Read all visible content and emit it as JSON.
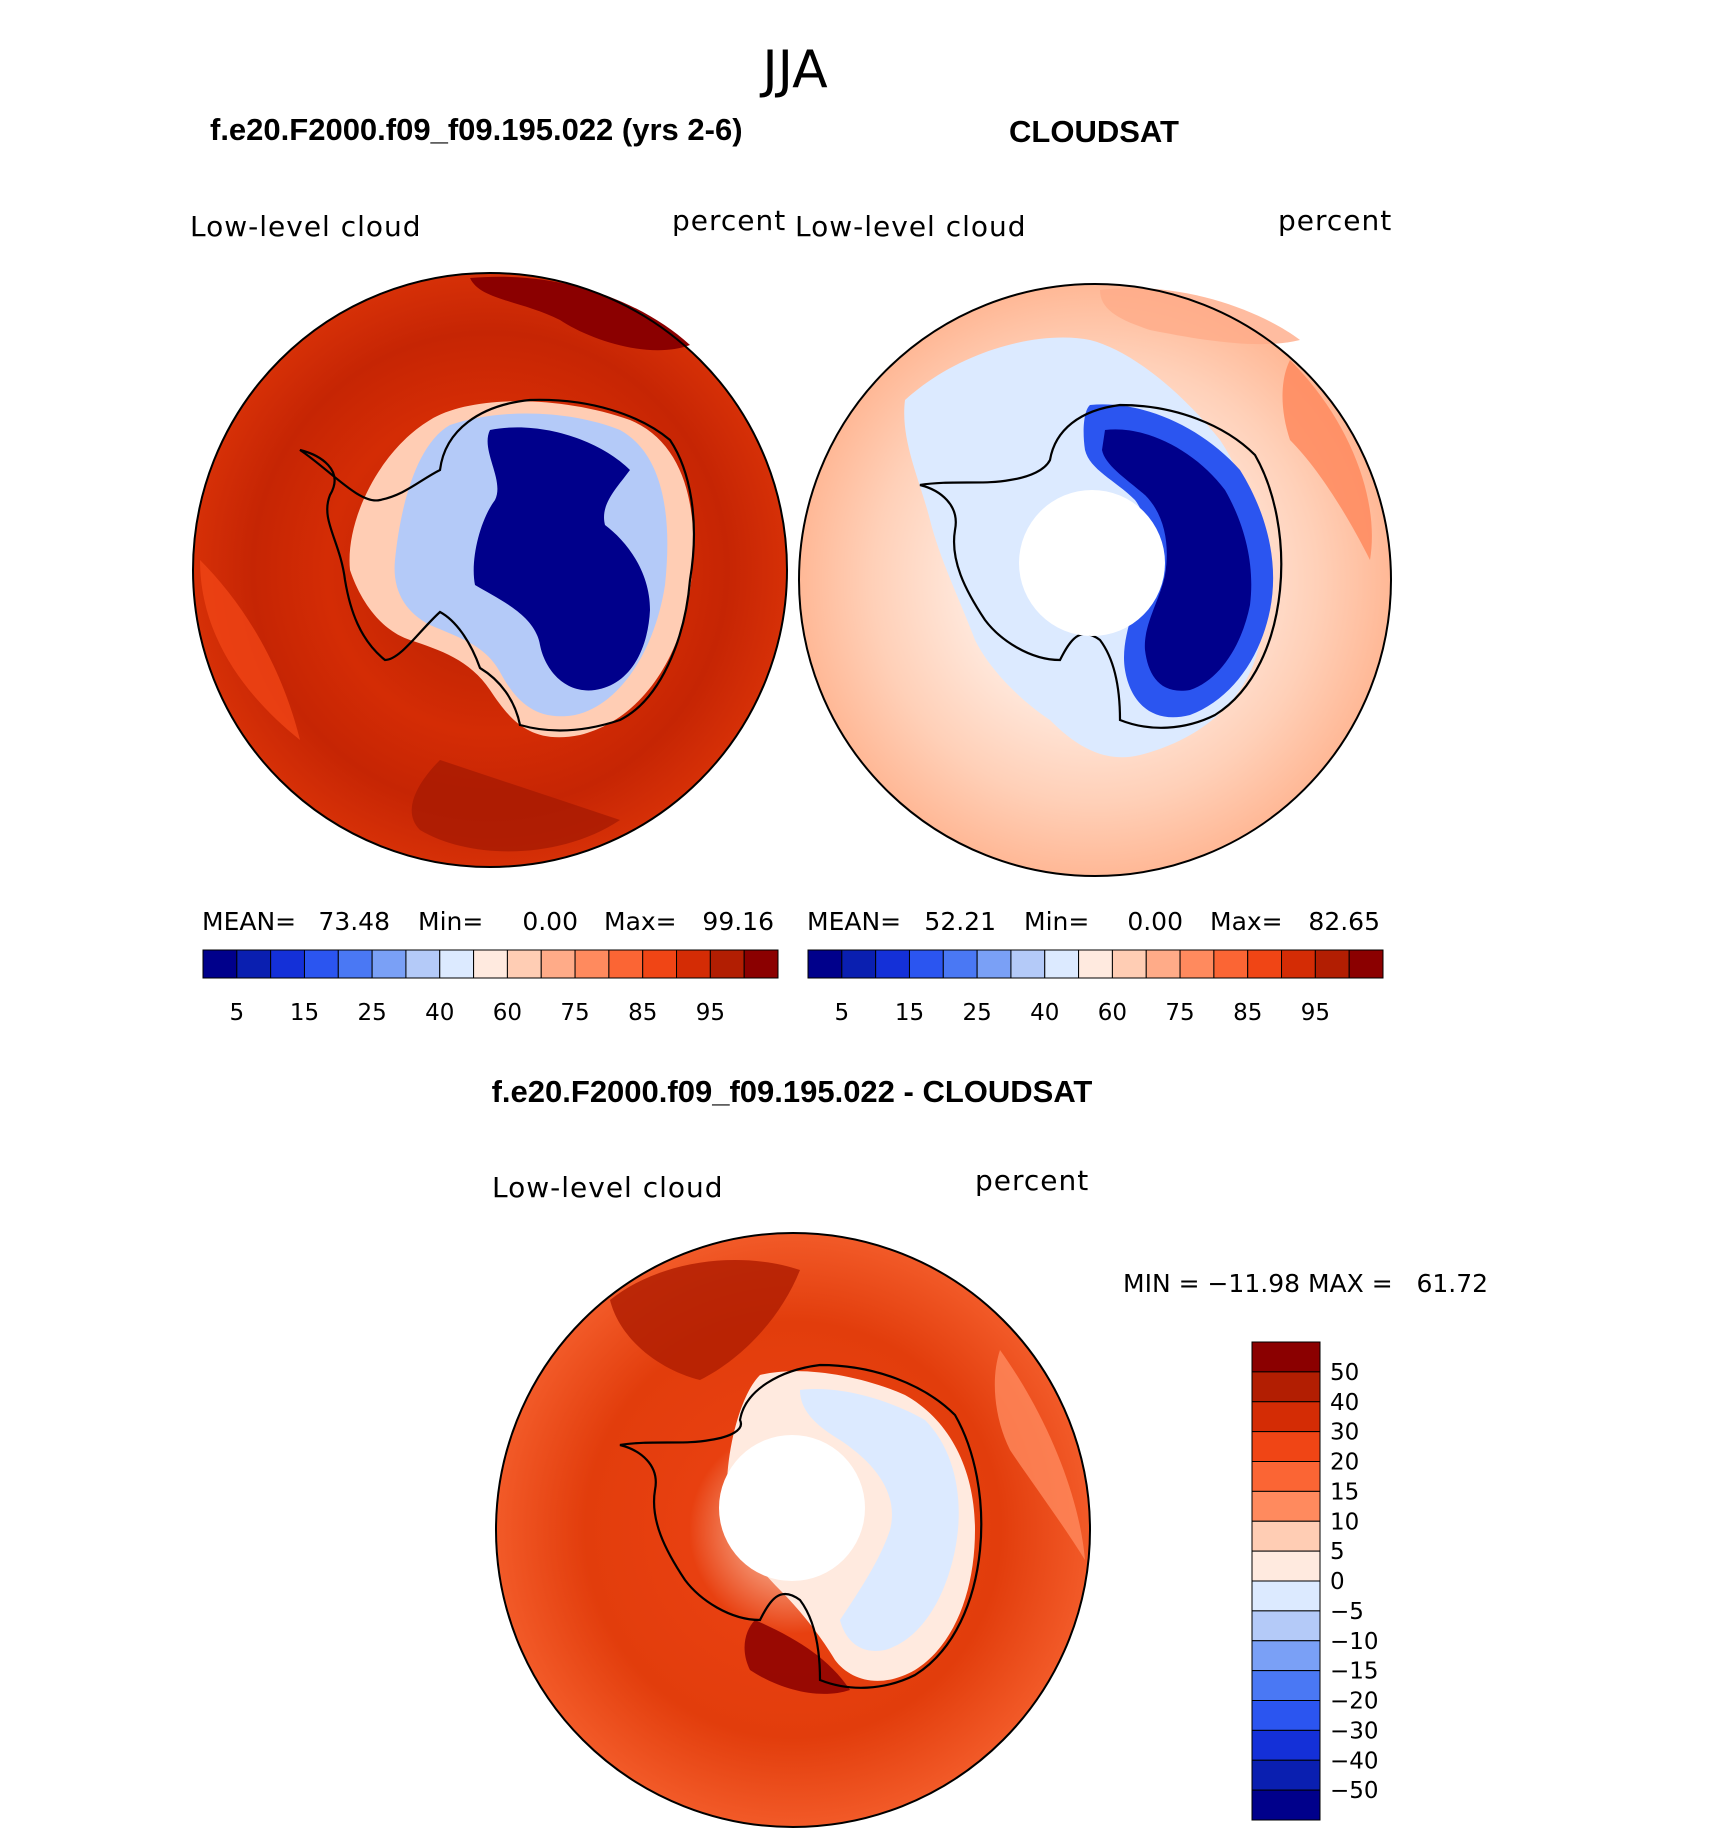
{
  "season": "JJA",
  "panels": [
    {
      "title": "f.e20.F2000.f09_f09.195.022 (yrs 2-6)",
      "variable": "Low-level cloud",
      "units": "percent",
      "stats": {
        "mean_label": "MEAN=",
        "mean": "73.48",
        "min_label": "Min=",
        "min": "0.00",
        "max_label": "Max=",
        "max": "99.16"
      }
    },
    {
      "title": "CLOUDSAT",
      "variable": "Low-level cloud",
      "units": "percent",
      "stats": {
        "mean_label": "MEAN=",
        "mean": "52.21",
        "min_label": "Min=",
        "min": "0.00",
        "max_label": "Max=",
        "max": "82.65"
      }
    },
    {
      "title": "f.e20.F2000.f09_f09.195.022 - CLOUDSAT",
      "variable": "Low-level cloud",
      "units": "percent",
      "range_text": "MIN = −11.98 MAX =   61.72"
    }
  ],
  "chart_data": [
    {
      "type": "heatmap",
      "title": "f.e20.F2000.f09_f09.195.022 (yrs 2-6)",
      "projection": "south polar stereographic",
      "variable": "Low-level cloud",
      "units": "percent",
      "mean": 73.48,
      "min": 0.0,
      "max": 99.16,
      "colorbar_ticks": [
        "5",
        "15",
        "25",
        "40",
        "60",
        "75",
        "85",
        "95"
      ],
      "colorbar_colors": [
        "#00008b",
        "#0a1fb0",
        "#1430d8",
        "#2b55f0",
        "#4a78f4",
        "#7aa0f6",
        "#b4caf8",
        "#dceaff",
        "#ffeadf",
        "#ffcdb4",
        "#ffab88",
        "#ff8a5e",
        "#fb6534",
        "#f04515",
        "#d42c05",
        "#b21e02",
        "#8b0000"
      ]
    },
    {
      "type": "heatmap",
      "title": "CLOUDSAT",
      "projection": "south polar stereographic",
      "variable": "Low-level cloud",
      "units": "percent",
      "mean": 52.21,
      "min": 0.0,
      "max": 82.65,
      "colorbar_ticks": [
        "5",
        "15",
        "25",
        "40",
        "60",
        "75",
        "85",
        "95"
      ],
      "colorbar_colors": [
        "#00008b",
        "#0a1fb0",
        "#1430d8",
        "#2b55f0",
        "#4a78f4",
        "#7aa0f6",
        "#b4caf8",
        "#dceaff",
        "#ffeadf",
        "#ffcdb4",
        "#ffab88",
        "#ff8a5e",
        "#fb6534",
        "#f04515",
        "#d42c05",
        "#b21e02",
        "#8b0000"
      ]
    },
    {
      "type": "heatmap",
      "title": "f.e20.F2000.f09_f09.195.022 - CLOUDSAT",
      "projection": "south polar stereographic",
      "variable": "Low-level cloud",
      "units": "percent",
      "min": -11.98,
      "max": 61.72,
      "colorbar_ticks": [
        "50",
        "40",
        "30",
        "20",
        "15",
        "10",
        "5",
        "0",
        "−5",
        "−10",
        "−15",
        "−20",
        "−30",
        "−40",
        "−50"
      ],
      "colorbar_colors": [
        "#8b0000",
        "#b21e02",
        "#d42c05",
        "#f04515",
        "#fb6534",
        "#ff8a5e",
        "#ffcdb4",
        "#ffeadf",
        "#dceaff",
        "#b4caf8",
        "#7aa0f6",
        "#4a78f4",
        "#2b55f0",
        "#1430d8",
        "#0a1fb0",
        "#00008b"
      ]
    }
  ]
}
